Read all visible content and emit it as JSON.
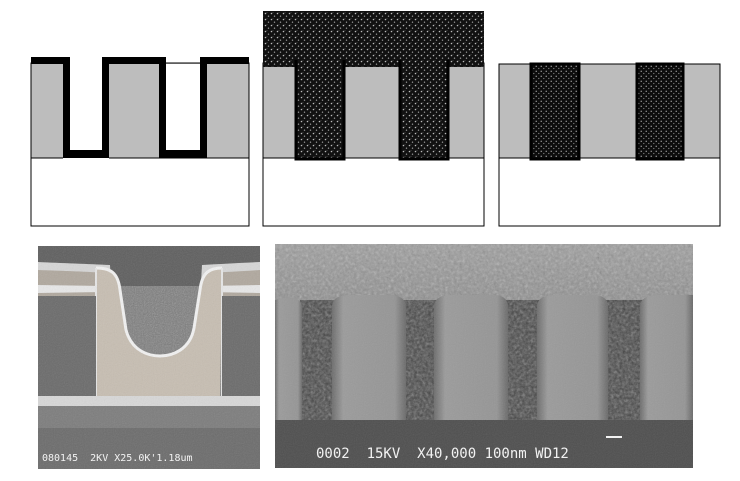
{
  "diagrams": {
    "steps": [
      "trench-etch-with-barrier",
      "metal-fill-overburden",
      "planarized-inlaid-lines"
    ],
    "colors": {
      "dielectric": "#bdbdbd",
      "barrier": "#000000",
      "substrate": "#ffffff",
      "metal_fill": "#111111",
      "outline": "#000000"
    }
  },
  "sem_left": {
    "caption": "080145  2KV X25.0K'1.18um"
  },
  "sem_right": {
    "caption": "0002  15KV  X40,000 100nm WD12"
  }
}
